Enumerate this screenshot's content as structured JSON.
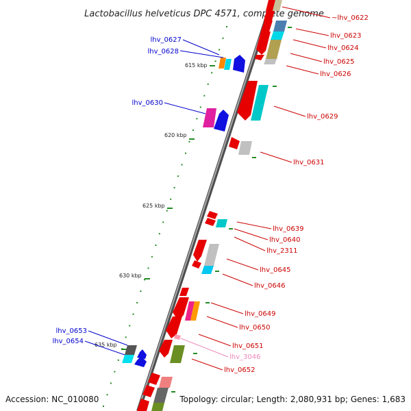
{
  "title": "Lactobacillus helveticus DPC 4571, complete genome",
  "footer": {
    "accession": "Accession: NC_010080",
    "summary": "Topology: circular; Length: 2,080,931 bp; Genes: 1,683"
  },
  "scale_labels": [
    "615 kbp",
    "620 kbp",
    "625 kbp",
    "630 kbp",
    "635 kbp"
  ],
  "colors": {
    "backbone": "#7a7a7a",
    "tick": "#228b22",
    "label_plus": "#0000cc",
    "label_minus": "#cc0000",
    "label_faded": "#ee88bb"
  },
  "genes_left": [
    {
      "id": "lhv_0627"
    },
    {
      "id": "lhv_0628"
    },
    {
      "id": "lhv_0630"
    },
    {
      "id": "lhv_0653"
    },
    {
      "id": "lhv_0654"
    }
  ],
  "genes_right": [
    {
      "id": "lhv_0622",
      "prefix": "~"
    },
    {
      "id": "lhv_0623"
    },
    {
      "id": "lhv_0624"
    },
    {
      "id": "lhv_0625"
    },
    {
      "id": "lhv_0626"
    },
    {
      "id": "lhv_0629"
    },
    {
      "id": "lhv_0631"
    },
    {
      "id": "lhv_0639"
    },
    {
      "id": "lhv_0640"
    },
    {
      "id": "lhv_2311"
    },
    {
      "id": "lhv_0645"
    },
    {
      "id": "lhv_0646"
    },
    {
      "id": "lhv_0649"
    },
    {
      "id": "lhv_0650"
    },
    {
      "id": "lhv_0651"
    },
    {
      "id": "lhv_3046",
      "faded": true
    },
    {
      "id": "lhv_0652"
    }
  ]
}
